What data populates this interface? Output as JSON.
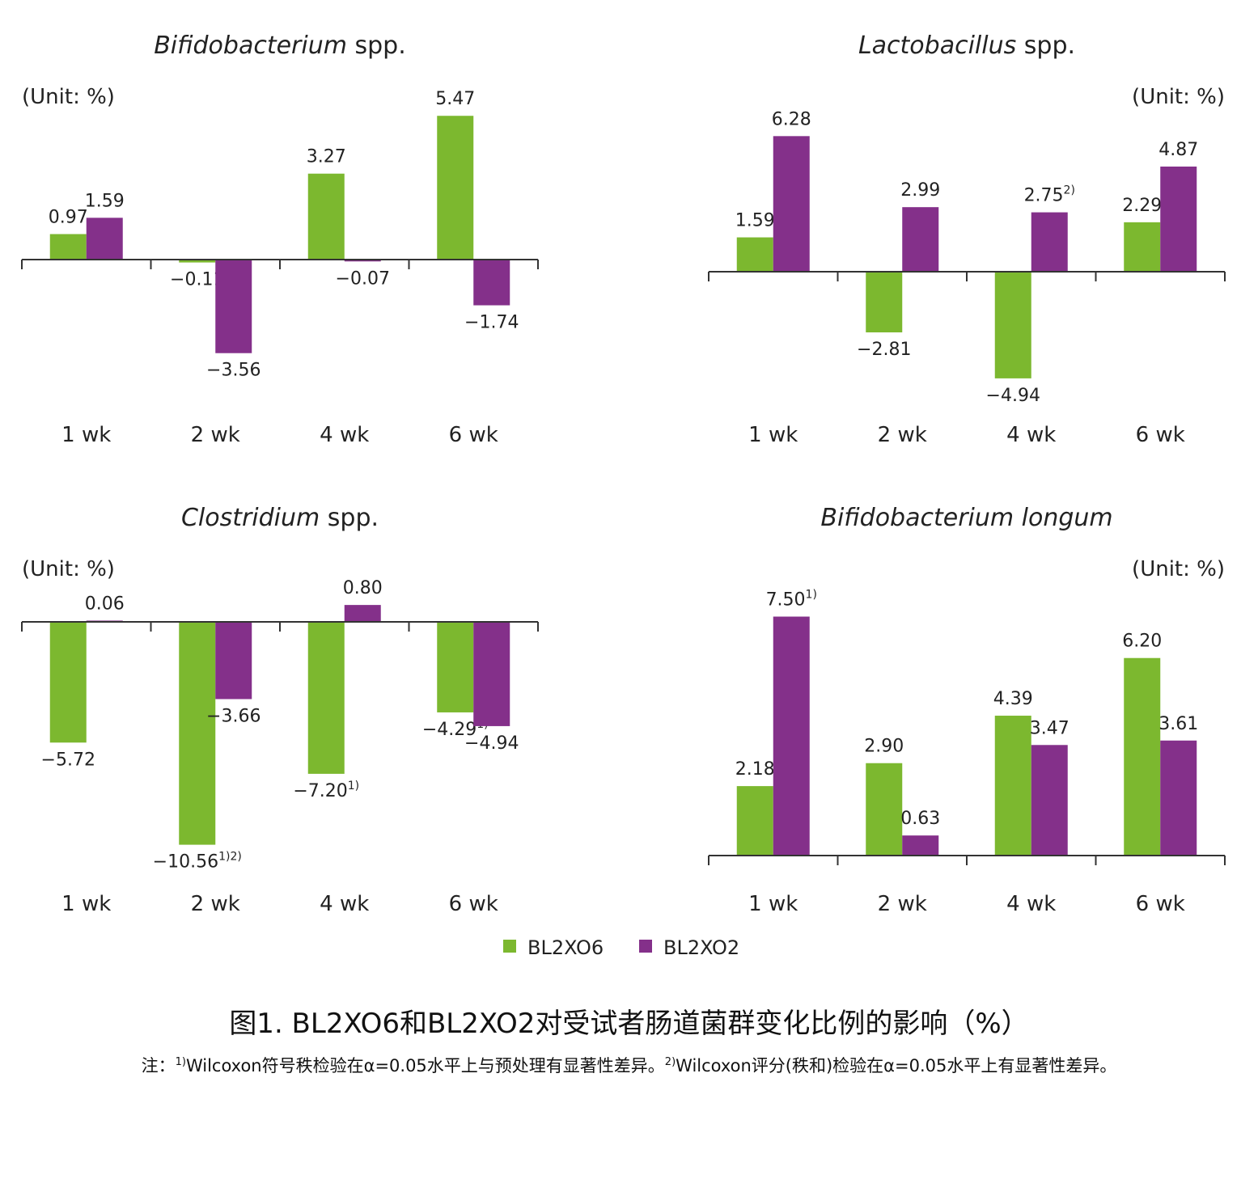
{
  "colors": {
    "BL2XO6": "#7cb82f",
    "BL2XO2": "#84308a"
  },
  "legend": [
    {
      "name": "BL2XO6",
      "color": "#7cb82f"
    },
    {
      "name": "BL2XO2",
      "color": "#84308a"
    }
  ],
  "unit_label": "(Unit: %)",
  "caption": "图1. BL2XO6和BL2XO2对受试者肠道菌群变化比例的影响（%）",
  "note": {
    "prefix": "注：",
    "sup1": "1)",
    "text1": "Wilcoxon符号秩检验在α=0.05水平上与预处理有显著性差异。",
    "sup2": "2)",
    "text2": "Wilcoxon评分(秩和)检验在α=0.05水平上有显著性差异。"
  },
  "chart_data": [
    {
      "type": "bar",
      "title_italic": "Bifidobacterium",
      "title_rest": " spp.",
      "unit_position": "top-left",
      "categories": [
        "1 wk",
        "2 wk",
        "4 wk",
        "6 wk"
      ],
      "ylim": [
        -3.56,
        5.47
      ],
      "series": [
        {
          "name": "BL2XO6",
          "values": [
            0.97,
            -0.11,
            3.27,
            5.47
          ],
          "labels": [
            "0.97",
            "−0.11",
            "3.27",
            "5.47"
          ],
          "sups": [
            "",
            "",
            "",
            ""
          ]
        },
        {
          "name": "BL2XO2",
          "values": [
            1.59,
            -3.56,
            -0.07,
            -1.74
          ],
          "labels": [
            "1.59",
            "−3.56",
            "−0.07",
            "−1.74"
          ],
          "sups": [
            "",
            "",
            "",
            ""
          ]
        }
      ]
    },
    {
      "type": "bar",
      "title_italic": "Lactobacillus",
      "title_rest": " spp.",
      "unit_position": "top-right",
      "categories": [
        "1 wk",
        "2 wk",
        "4 wk",
        "6 wk"
      ],
      "ylim": [
        -4.94,
        6.28
      ],
      "series": [
        {
          "name": "BL2XO6",
          "values": [
            1.59,
            -2.81,
            -4.94,
            2.29
          ],
          "labels": [
            "1.59",
            "−2.81",
            "−4.94",
            "2.29"
          ],
          "sups": [
            "",
            "",
            "",
            ""
          ]
        },
        {
          "name": "BL2XO2",
          "values": [
            6.28,
            2.99,
            2.75,
            4.87
          ],
          "labels": [
            "6.28",
            "2.99",
            "2.75",
            "4.87"
          ],
          "sups": [
            "",
            "",
            "2)",
            ""
          ]
        }
      ]
    },
    {
      "type": "bar",
      "title_italic": "Clostridium",
      "title_rest": " spp.",
      "unit_position": "top-left",
      "categories": [
        "1 wk",
        "2 wk",
        "4 wk",
        "6 wk"
      ],
      "ylim": [
        -10.56,
        0.8
      ],
      "series": [
        {
          "name": "BL2XO6",
          "values": [
            -5.72,
            -10.56,
            -7.2,
            -4.29
          ],
          "labels": [
            "−5.72",
            "−10.56",
            "−7.20",
            "−4.29"
          ],
          "sups": [
            "",
            "1)2)",
            "1)",
            "1)"
          ]
        },
        {
          "name": "BL2XO2",
          "values": [
            0.06,
            -3.66,
            0.8,
            -4.94
          ],
          "labels": [
            "0.06",
            "−3.66",
            "0.80",
            "−4.94"
          ],
          "sups": [
            "",
            "",
            "",
            ""
          ]
        }
      ]
    },
    {
      "type": "bar",
      "title_italic": "Bifidobacterium longum",
      "title_rest": "",
      "unit_position": "top-right",
      "categories": [
        "1 wk",
        "2 wk",
        "4 wk",
        "6 wk"
      ],
      "ylim": [
        0,
        7.5
      ],
      "series": [
        {
          "name": "BL2XO6",
          "values": [
            2.18,
            2.9,
            4.39,
            6.2
          ],
          "labels": [
            "2.18",
            "2.90",
            "4.39",
            "6.20"
          ],
          "sups": [
            "",
            "",
            "",
            ""
          ]
        },
        {
          "name": "BL2XO2",
          "values": [
            7.5,
            0.63,
            3.47,
            3.61
          ],
          "labels": [
            "7.50",
            "0.63",
            "3.47",
            "3.61"
          ],
          "sups": [
            "1)",
            "",
            "",
            ""
          ]
        }
      ]
    }
  ]
}
